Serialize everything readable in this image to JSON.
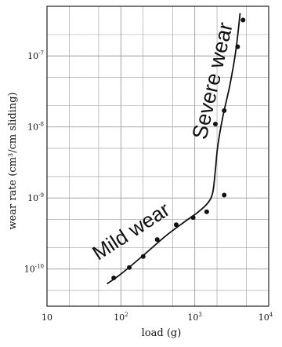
{
  "chart_data": {
    "type": "scatter",
    "title": "",
    "xlabel": "load (g)",
    "ylabel": "wear rate (cm³/cm sliding)",
    "x_scale": "log",
    "y_scale": "log",
    "xlim": [
      10,
      10000
    ],
    "ylim": [
      3e-11,
      5e-07
    ],
    "grid": true,
    "x_ticks": [
      {
        "base": "10",
        "exp": ""
      },
      {
        "base": "10",
        "exp": "2"
      },
      {
        "base": "10",
        "exp": "3"
      },
      {
        "base": "10",
        "exp": "4"
      }
    ],
    "y_ticks": [
      {
        "base": "10",
        "exp": "-10"
      },
      {
        "base": "10",
        "exp": "-9"
      },
      {
        "base": "10",
        "exp": "-8"
      },
      {
        "base": "10",
        "exp": "-7"
      }
    ],
    "series": [
      {
        "points": [
          {
            "x": 80,
            "y": 7.5e-11
          },
          {
            "x": 130,
            "y": 1.05e-10
          },
          {
            "x": 200,
            "y": 1.5e-10
          },
          {
            "x": 310,
            "y": 2.6e-10
          },
          {
            "x": 560,
            "y": 4.2e-10
          },
          {
            "x": 950,
            "y": 5.3e-10
          },
          {
            "x": 1450,
            "y": 6.4e-10
          },
          {
            "x": 1900,
            "y": 1.1e-08
          },
          {
            "x": 2500,
            "y": 1.1e-09
          },
          {
            "x": 2500,
            "y": 1.7e-08
          },
          {
            "x": 3800,
            "y": 1.35e-07
          },
          {
            "x": 4500,
            "y": 3.2e-07
          }
        ]
      }
    ],
    "trend_curve": [
      {
        "x": 65,
        "y": 6.2e-11
      },
      {
        "x": 100,
        "y": 8.5e-11
      },
      {
        "x": 200,
        "y": 1.55e-10
      },
      {
        "x": 400,
        "y": 2.9e-10
      },
      {
        "x": 700,
        "y": 4.5e-10
      },
      {
        "x": 1100,
        "y": 6.3e-10
      },
      {
        "x": 1500,
        "y": 8.5e-10
      },
      {
        "x": 1750,
        "y": 1.2e-09
      },
      {
        "x": 1900,
        "y": 2.5e-09
      },
      {
        "x": 2050,
        "y": 5.5e-09
      },
      {
        "x": 2400,
        "y": 1.4e-08
      },
      {
        "x": 3000,
        "y": 4e-08
      },
      {
        "x": 3600,
        "y": 1.2e-07
      },
      {
        "x": 4100,
        "y": 4e-07
      }
    ],
    "annotations": [
      {
        "text": "Mild wear",
        "color": "#2aa84a"
      },
      {
        "text": "Severe wear",
        "color": "#e0201e"
      }
    ]
  }
}
